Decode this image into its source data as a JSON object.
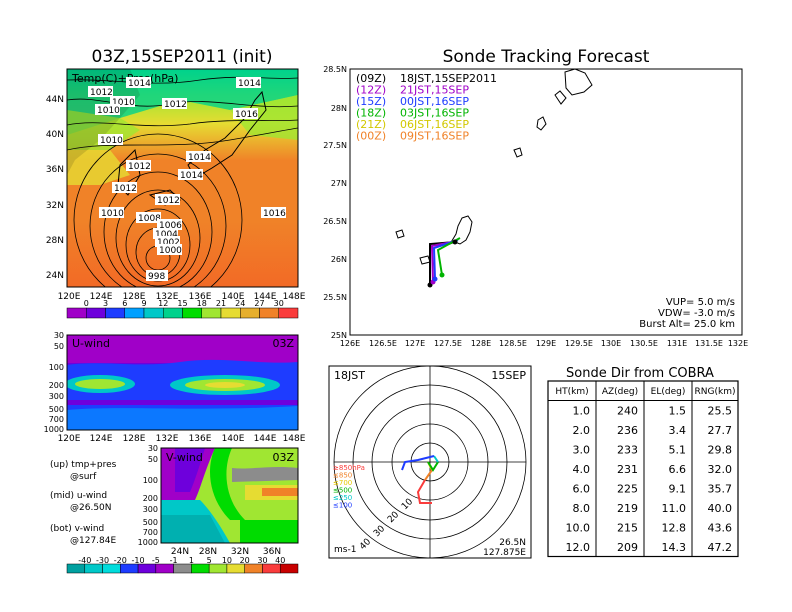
{
  "map_panel": {
    "title": "03Z,15SEP2011 (init)",
    "overlay_label": "Temp(C)+Pres(hPa)",
    "lat_ticks": [
      "44N",
      "40N",
      "36N",
      "32N",
      "28N",
      "24N"
    ],
    "lon_ticks": [
      "120E",
      "124E",
      "128E",
      "132E",
      "136E",
      "140E",
      "144E",
      "148E"
    ],
    "isobar_labels": [
      "1014",
      "1012",
      "1010",
      "1010",
      "1012",
      "1014",
      "1016",
      "1010",
      "1012",
      "1012",
      "1014",
      "1014",
      "1012",
      "1010",
      "1008",
      "1006",
      "1004",
      "1002",
      "1000",
      "998",
      "1016"
    ],
    "colorbar": {
      "labels": [
        "0",
        "3",
        "6",
        "9",
        "12",
        "15",
        "18",
        "21",
        "24",
        "27",
        "30"
      ],
      "colors": [
        "#a000c8",
        "#6e00dc",
        "#1e3cff",
        "#00a0ff",
        "#00c8c8",
        "#00d28c",
        "#00dc00",
        "#a0e632",
        "#e6dc32",
        "#e6af2d",
        "#f08228",
        "#fa3c3c"
      ]
    }
  },
  "u_panel": {
    "label": "U-wind",
    "time": "03Z",
    "y_ticks": [
      "30",
      "50",
      "100",
      "200",
      "300",
      "500",
      "700",
      "1000"
    ],
    "x_ticks": [
      "120E",
      "124E",
      "128E",
      "132E",
      "136E",
      "140E",
      "144E",
      "148E"
    ]
  },
  "v_panel": {
    "label": "V-wind",
    "time": "03Z",
    "y_ticks": [
      "30",
      "50",
      "100",
      "200",
      "300",
      "500",
      "700",
      "1000"
    ],
    "x_ticks": [
      "24N",
      "28N",
      "32N",
      "36N"
    ]
  },
  "legend_notes": {
    "up": "(up) tmp+pres",
    "up2": "@surf",
    "mid": "(mid) u-wind",
    "mid2": "@26.50N",
    "bot": "(bot) v-wind",
    "bot2": "@127.84E"
  },
  "wind_colorbar": {
    "labels": [
      "-40",
      "-30",
      "-20",
      "-10",
      "-5",
      "-1",
      "1",
      "5",
      "10",
      "20",
      "30",
      "40"
    ],
    "colors": [
      "#00a0a0",
      "#00c8c8",
      "#00dcdc",
      "#1e3cff",
      "#6e00dc",
      "#a000c8",
      "#8c8c8c",
      "#00dc00",
      "#a0e632",
      "#e6dc32",
      "#f08228",
      "#fa3c3c",
      "#c80000"
    ]
  },
  "tracking": {
    "title": "Sonde Tracking Forecast",
    "lat_ticks": [
      "28.5N",
      "28N",
      "27.5N",
      "27N",
      "26.5N",
      "26N",
      "25.5N",
      "25N"
    ],
    "lon_ticks": [
      "126E",
      "126.5E",
      "127E",
      "127.5E",
      "128E",
      "128.5E",
      "129E",
      "129.5E",
      "130E",
      "130.5E",
      "131E",
      "131.5E",
      "132E"
    ],
    "legend": [
      {
        "code": "(09Z)",
        "text": "18JST,15SEP2011",
        "color": "#000000"
      },
      {
        "code": "(12Z)",
        "text": "21JST,15SEP",
        "color": "#a000c8"
      },
      {
        "code": "(15Z)",
        "text": "00JST,16SEP",
        "color": "#1e3cff"
      },
      {
        "code": "(18Z)",
        "text": "03JST,16SEP",
        "color": "#00b400"
      },
      {
        "code": "(21Z)",
        "text": "06JST,16SEP",
        "color": "#d2c800"
      },
      {
        "code": "(00Z)",
        "text": "09JST,16SEP",
        "color": "#f08228"
      }
    ],
    "params": [
      "VUP= 5.0 m/s",
      "VDW= -3.0 m/s",
      "Burst Alt= 25.0 km"
    ]
  },
  "hodograph": {
    "time_label": "18JST",
    "date_label": "15SEP",
    "ring_labels": [
      "10",
      "20",
      "30",
      "40"
    ],
    "levels": [
      {
        "label": "≥850hPa",
        "color": "#fa3c3c"
      },
      {
        "label": "≤850",
        "color": "#f08228"
      },
      {
        "label": "≤700",
        "color": "#e6c800"
      },
      {
        "label": "≤500",
        "color": "#00b400"
      },
      {
        "label": "≤250",
        "color": "#00c8c8"
      },
      {
        "label": "≤100",
        "color": "#1e3cff"
      }
    ],
    "unit": "ms-1",
    "loc_lat": "26.5N",
    "loc_lon": "127.875E"
  },
  "sonde_table": {
    "title": "Sonde Dir from COBRA",
    "headers": [
      "HT(km)",
      "AZ(deg)",
      "EL(deg)",
      "RNG(km)"
    ],
    "rows": [
      [
        "1.0",
        "240",
        "1.5",
        "25.5"
      ],
      [
        "2.0",
        "236",
        "3.4",
        "27.7"
      ],
      [
        "3.0",
        "233",
        "5.1",
        "29.8"
      ],
      [
        "4.0",
        "231",
        "6.6",
        "32.0"
      ],
      [
        "6.0",
        "225",
        "9.1",
        "35.7"
      ],
      [
        "8.0",
        "219",
        "11.0",
        "40.0"
      ],
      [
        "10.0",
        "215",
        "12.8",
        "43.6"
      ],
      [
        "12.0",
        "209",
        "14.3",
        "47.2"
      ]
    ]
  },
  "chart_data": {
    "type": "table",
    "title": "Sonde Dir from COBRA",
    "columns": [
      "HT(km)",
      "AZ(deg)",
      "EL(deg)",
      "RNG(km)"
    ],
    "rows": [
      [
        1.0,
        240,
        1.5,
        25.5
      ],
      [
        2.0,
        236,
        3.4,
        27.7
      ],
      [
        3.0,
        233,
        5.1,
        29.8
      ],
      [
        4.0,
        231,
        6.6,
        32.0
      ],
      [
        6.0,
        225,
        9.1,
        35.7
      ],
      [
        8.0,
        219,
        11.0,
        40.0
      ],
      [
        10.0,
        215,
        12.8,
        43.6
      ],
      [
        12.0,
        209,
        14.3,
        47.2
      ]
    ]
  }
}
